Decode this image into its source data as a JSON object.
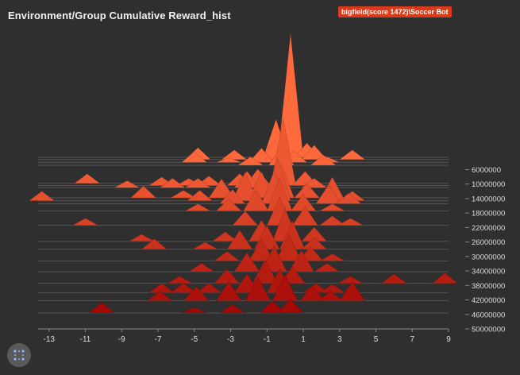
{
  "title": "Environment/Group Cumulative Reward_hist",
  "run_badge": "bigfield(score 1472)\\Soccer Bot",
  "icons": {
    "expand": "fullscreen-dots-icon"
  },
  "colors": {
    "background": "#2f2f2f",
    "badge": "#d93a1b",
    "early_step": "#ff6a3d",
    "late_step": "#9a0000",
    "grid": "#555555",
    "axis_text": "#dddddd"
  },
  "chart_data": {
    "type": "histogram-offset",
    "title": "Environment/Group Cumulative Reward_hist",
    "xlim": [
      -13.6,
      9
    ],
    "ylim_steps": [
      2600000,
      50000000
    ],
    "x_ticks": [
      -13,
      -11,
      -9,
      -7,
      -5,
      -3,
      -1,
      1,
      3,
      5,
      7,
      9
    ],
    "step_ticks": [
      6000000,
      10000000,
      14000000,
      18000000,
      22000000,
      26000000,
      30000000,
      34000000,
      38000000,
      42000000,
      46000000,
      50000000
    ],
    "step_tick_labels": [
      "6000000",
      "10000000",
      "14000000",
      "18000000",
      "22000000",
      "26000000",
      "30000000",
      "34000000",
      "38000000",
      "42000000",
      "46000000",
      "50000000"
    ],
    "histograms": [
      {
        "step": 2600000,
        "bins": [
          [
            0,
            0.25
          ],
          [
            -0.5,
            0.8
          ],
          [
            0.3,
            2.6
          ],
          [
            1.2,
            0.3
          ]
        ]
      },
      {
        "step": 3200000,
        "bins": [
          [
            -4.8,
            0.25
          ],
          [
            -2.8,
            0.2
          ],
          [
            -0.6,
            0.4
          ],
          [
            1.6,
            0.3
          ],
          [
            3.7,
            0.2
          ]
        ]
      },
      {
        "step": 4000000,
        "bins": [
          [
            -5,
            0.22
          ],
          [
            -3.1,
            0.1
          ],
          [
            -1.3,
            0.3
          ],
          [
            0.5,
            0.25
          ],
          [
            2.3,
            0.12
          ]
        ]
      },
      {
        "step": 4800000,
        "bins": [
          [
            -1.9,
            0.18
          ],
          [
            -0.2,
            0.4
          ],
          [
            2.1,
            0.22
          ]
        ]
      },
      {
        "step": 9800000,
        "bins": [
          [
            -10.9,
            0.2
          ]
        ]
      },
      {
        "step": 10400000,
        "bins": [
          [
            -6.8,
            0.18
          ],
          [
            -5.3,
            0.15
          ],
          [
            -4.2,
            0.2
          ],
          [
            -2.5,
            0.25
          ],
          [
            -1.5,
            0.35
          ],
          [
            -0.1,
            1.4
          ],
          [
            1.1,
            0.3
          ]
        ]
      },
      {
        "step": 11000000,
        "bins": [
          [
            -8.7,
            0.15
          ],
          [
            -6.2,
            0.2
          ],
          [
            -4.8,
            0.2
          ],
          [
            -2.1,
            0.35
          ],
          [
            1.6,
            0.2
          ]
        ]
      },
      {
        "step": 13800000,
        "bins": [
          [
            -7.8,
            0.25
          ],
          [
            -5.6,
            0.16
          ],
          [
            -3.5,
            0.4
          ],
          [
            -1.3,
            0.55
          ],
          [
            -0.2,
            0.7
          ],
          [
            1.2,
            0.3
          ]
        ]
      },
      {
        "step": 14600000,
        "bins": [
          [
            -13.4,
            0.2
          ],
          [
            -4.7,
            0.22
          ],
          [
            -2.2,
            0.6
          ],
          [
            -0.4,
            0.9
          ],
          [
            2.6,
            0.5
          ],
          [
            3.7,
            0.2
          ]
        ]
      },
      {
        "step": 15400000,
        "bins": [
          [
            -2.9,
            0.3
          ],
          [
            -0.6,
            0.7
          ],
          [
            2.4,
            0.4
          ],
          [
            3.5,
            0.22
          ]
        ]
      },
      {
        "step": 17400000,
        "bins": [
          [
            -4.8,
            0.15
          ],
          [
            -3.1,
            0.25
          ],
          [
            -1.6,
            0.45
          ],
          [
            -0.3,
            0.7
          ],
          [
            1,
            0.35
          ],
          [
            2.6,
            0.15
          ]
        ]
      },
      {
        "step": 21400000,
        "bins": [
          [
            -11,
            0.15
          ],
          [
            -2.2,
            0.3
          ],
          [
            -0.3,
            0.6
          ],
          [
            1.1,
            0.4
          ],
          [
            2.6,
            0.2
          ],
          [
            3.6,
            0.15
          ]
        ]
      },
      {
        "step": 25800000,
        "bins": [
          [
            -7.9,
            0.15
          ],
          [
            -3.3,
            0.2
          ],
          [
            -1.3,
            0.45
          ],
          [
            0,
            0.7
          ],
          [
            1.6,
            0.3
          ]
        ]
      },
      {
        "step": 28000000,
        "bins": [
          [
            -7.2,
            0.22
          ],
          [
            -4.4,
            0.15
          ],
          [
            -2.5,
            0.4
          ],
          [
            -1,
            0.5
          ],
          [
            0.4,
            0.6
          ],
          [
            1.6,
            0.25
          ]
        ]
      },
      {
        "step": 31200000,
        "bins": [
          [
            -3.2,
            0.2
          ],
          [
            -1.3,
            0.45
          ],
          [
            0.2,
            0.55
          ],
          [
            1.4,
            0.3
          ],
          [
            2.6,
            0.15
          ]
        ]
      },
      {
        "step": 34200000,
        "bins": [
          [
            -4.6,
            0.18
          ],
          [
            -2.1,
            0.4
          ],
          [
            -0.6,
            0.55
          ],
          [
            0.9,
            0.45
          ],
          [
            2.3,
            0.18
          ]
        ]
      },
      {
        "step": 37400000,
        "bins": [
          [
            -5.8,
            0.15
          ],
          [
            -3.2,
            0.3
          ],
          [
            -1.1,
            0.5
          ],
          [
            0.4,
            0.35
          ],
          [
            3.6,
            0.15
          ],
          [
            6,
            0.2
          ],
          [
            8.8,
            0.22
          ]
        ]
      },
      {
        "step": 40000000,
        "bins": [
          [
            -6.8,
            0.2
          ],
          [
            -5.6,
            0.2
          ],
          [
            -4.2,
            0.2
          ],
          [
            -2.1,
            0.4
          ],
          [
            -0.3,
            0.5
          ],
          [
            1.7,
            0.2
          ],
          [
            2.6,
            0.18
          ]
        ]
      },
      {
        "step": 42200000,
        "bins": [
          [
            -6.9,
            0.2
          ],
          [
            -4.9,
            0.3
          ],
          [
            -3.1,
            0.4
          ],
          [
            -1.5,
            0.5
          ],
          [
            0,
            0.55
          ],
          [
            1.5,
            0.3
          ],
          [
            2.5,
            0.2
          ],
          [
            3.7,
            0.4
          ]
        ]
      },
      {
        "step": 45600000,
        "bins": [
          [
            -10.1,
            0.22
          ],
          [
            -5,
            0.12
          ],
          [
            -2.9,
            0.18
          ],
          [
            -0.7,
            0.25
          ],
          [
            0.3,
            0.3
          ]
        ]
      }
    ]
  }
}
